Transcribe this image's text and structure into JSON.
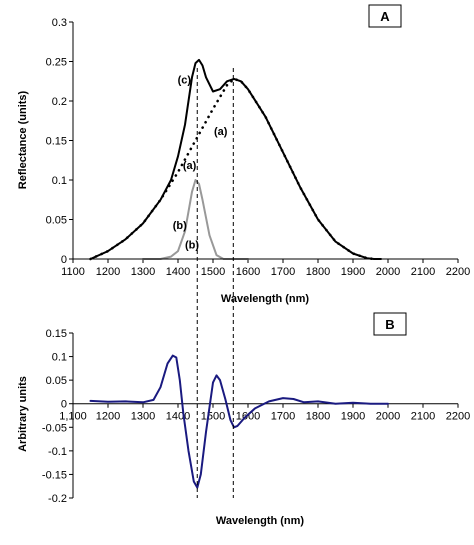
{
  "chart_data": [
    {
      "panel": "A",
      "type": "line",
      "xlabel": "Wavelength (nm)",
      "ylabel": "Reflectance (units)",
      "xlim": [
        1100,
        2200
      ],
      "ylim": [
        0,
        0.3
      ],
      "xticks": [
        1100,
        1200,
        1300,
        1400,
        1500,
        1600,
        1700,
        1800,
        1900,
        2000,
        2100,
        2200
      ],
      "yticks": [
        0,
        0.05,
        0.1,
        0.15,
        0.2,
        0.25,
        0.3
      ],
      "ytick_labels": [
        "0",
        "0.05",
        "0.1",
        "0.15",
        "0.2",
        "0.25",
        "0.3"
      ],
      "series": [
        {
          "name": "(c)",
          "style": "solid",
          "color": "#000000",
          "x": [
            1150,
            1200,
            1250,
            1300,
            1350,
            1380,
            1400,
            1420,
            1440,
            1450,
            1460,
            1470,
            1480,
            1500,
            1520,
            1540,
            1560,
            1580,
            1600,
            1650,
            1700,
            1750,
            1800,
            1850,
            1900,
            1940,
            1960,
            1980
          ],
          "y": [
            0,
            0.01,
            0.025,
            0.045,
            0.075,
            0.1,
            0.13,
            0.17,
            0.23,
            0.248,
            0.252,
            0.245,
            0.23,
            0.212,
            0.215,
            0.225,
            0.228,
            0.225,
            0.215,
            0.18,
            0.135,
            0.09,
            0.05,
            0.022,
            0.007,
            0.001,
            0,
            0
          ]
        },
        {
          "name": "(a)",
          "style": "dotted",
          "color": "#000000",
          "x": [
            1150,
            1200,
            1250,
            1300,
            1350,
            1400,
            1450,
            1500,
            1540,
            1560,
            1580,
            1600,
            1650,
            1700,
            1750,
            1800,
            1850,
            1900,
            1940,
            1960
          ],
          "y": [
            0,
            0.01,
            0.025,
            0.045,
            0.075,
            0.11,
            0.15,
            0.19,
            0.22,
            0.228,
            0.225,
            0.215,
            0.18,
            0.135,
            0.09,
            0.05,
            0.022,
            0.007,
            0.001,
            0
          ]
        },
        {
          "name": "(b)",
          "style": "solid",
          "color": "#999999",
          "x": [
            1300,
            1350,
            1380,
            1400,
            1420,
            1440,
            1450,
            1460,
            1470,
            1490,
            1510,
            1530,
            1560,
            1600
          ],
          "y": [
            0,
            0,
            0.003,
            0.01,
            0.035,
            0.085,
            0.1,
            0.095,
            0.075,
            0.03,
            0.005,
            0,
            0,
            0
          ]
        }
      ],
      "annotations": [
        {
          "text": "(c)",
          "x": 1418,
          "y": 0.222
        },
        {
          "text": "(a)",
          "x": 1522,
          "y": 0.157
        },
        {
          "text": "(a)",
          "x": 1433,
          "y": 0.114
        },
        {
          "text": "(b)",
          "x": 1405,
          "y": 0.038
        },
        {
          "text": "(b)",
          "x": 1440,
          "y": 0.013
        }
      ],
      "vlines": [
        1455,
        1558
      ],
      "label": "A"
    },
    {
      "panel": "B",
      "type": "line",
      "xlabel": "Wavelength (nm)",
      "ylabel": "Arbitrary units",
      "xlim": [
        1100,
        2200
      ],
      "ylim": [
        -0.2,
        0.15
      ],
      "xticks": [
        1100,
        1200,
        1300,
        1400,
        1500,
        1600,
        1700,
        1800,
        1900,
        2000,
        2100,
        2200
      ],
      "xtick_labels": [
        "1,100",
        "1200",
        "1300",
        "1400",
        "1500",
        "1600",
        "1700",
        "1800",
        "1900",
        "2000",
        "2100",
        "2200"
      ],
      "yticks": [
        -0.2,
        -0.15,
        -0.1,
        -0.05,
        0,
        0.05,
        0.1,
        0.15
      ],
      "ytick_labels": [
        "-0.2",
        "-0.15",
        "-0.1",
        "-0.05",
        "0",
        "0.05",
        "0.1",
        "0.15"
      ],
      "series": [
        {
          "color": "#1a1a80",
          "x": [
            1150,
            1200,
            1250,
            1300,
            1330,
            1350,
            1370,
            1385,
            1395,
            1405,
            1415,
            1430,
            1445,
            1455,
            1465,
            1480,
            1500,
            1510,
            1520,
            1535,
            1550,
            1560,
            1570,
            1590,
            1620,
            1660,
            1700,
            1730,
            1760,
            1800,
            1850,
            1900,
            1950,
            2000
          ],
          "y": [
            0.006,
            0.004,
            0.005,
            0.003,
            0.008,
            0.035,
            0.085,
            0.102,
            0.098,
            0.05,
            -0.02,
            -0.1,
            -0.165,
            -0.178,
            -0.15,
            -0.06,
            0.045,
            0.06,
            0.05,
            0.01,
            -0.035,
            -0.05,
            -0.047,
            -0.03,
            -0.01,
            0.005,
            0.012,
            0.01,
            0.003,
            0.005,
            0,
            0.002,
            0,
            0
          ]
        }
      ],
      "label": "B"
    }
  ]
}
